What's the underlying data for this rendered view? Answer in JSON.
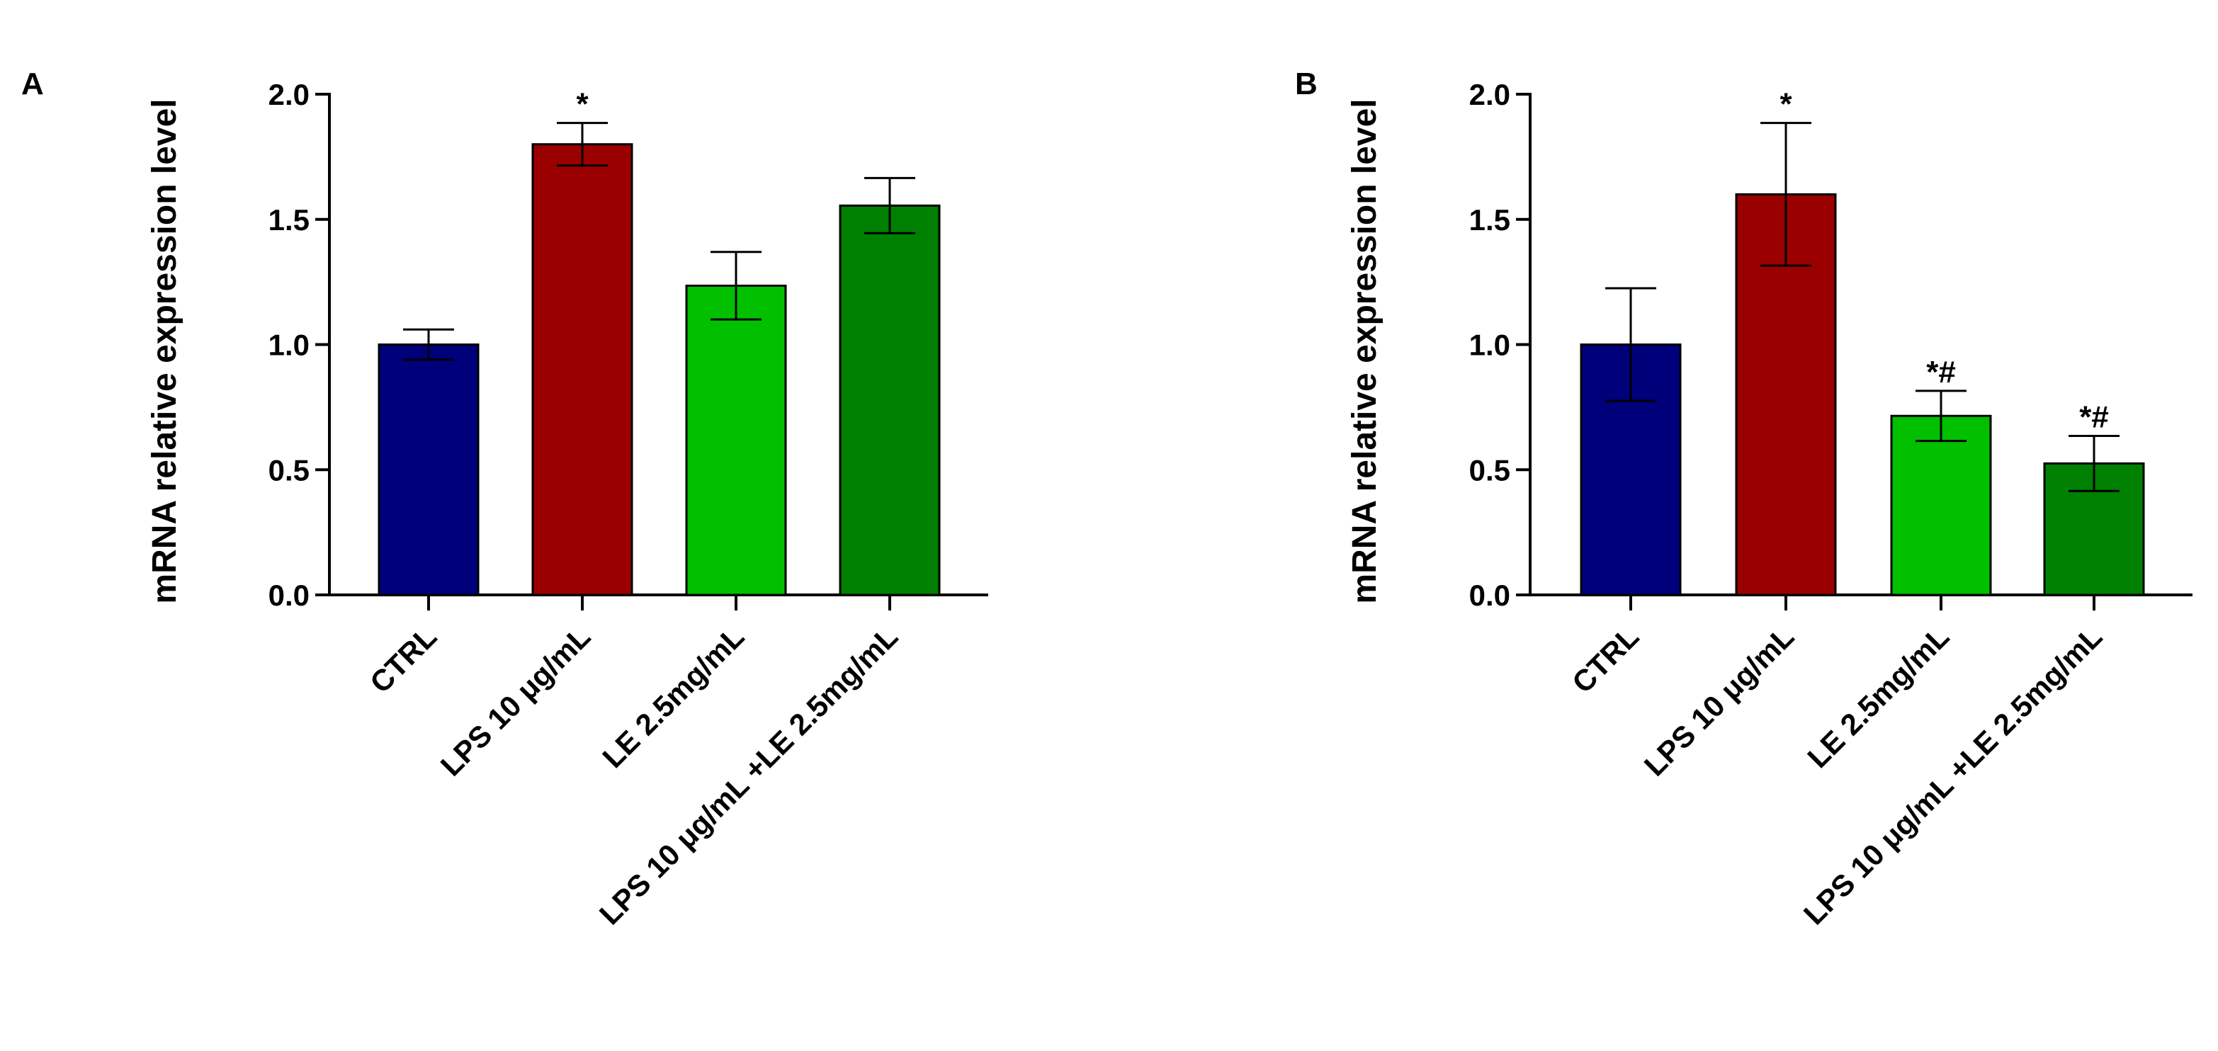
{
  "chart_data": [
    {
      "type": "bar",
      "panel": "A",
      "ylabel": "mRNA relative expression level",
      "ylim": [
        0,
        2.0
      ],
      "yticks": [
        "0.0",
        "0.5",
        "1.0",
        "1.5",
        "2.0"
      ],
      "categories": [
        "CTRL",
        "LPS 10 μg/mL",
        "LE 2.5mg/mL",
        "LPS 10 μg/mL +LE 2.5mg/mL"
      ],
      "values": [
        1.0,
        1.8,
        1.235,
        1.555
      ],
      "errors": [
        0.06,
        0.085,
        0.135,
        0.11
      ],
      "annotations": [
        "",
        "*",
        "",
        ""
      ],
      "colors": [
        "#00007a",
        "#9b0000",
        "#00c000",
        "#008000"
      ]
    },
    {
      "type": "bar",
      "panel": "B",
      "ylabel": "mRNA relative expression level",
      "ylim": [
        0,
        2.0
      ],
      "yticks": [
        "0.0",
        "0.5",
        "1.0",
        "1.5",
        "2.0"
      ],
      "categories": [
        "CTRL",
        "LPS 10 μg/mL",
        "LE 2.5mg/mL",
        "LPS 10 μg/mL +LE 2.5mg/mL"
      ],
      "values": [
        1.0,
        1.6,
        0.715,
        0.525
      ],
      "errors": [
        0.225,
        0.285,
        0.1,
        0.11
      ],
      "annotations": [
        "",
        "*",
        "*#",
        "*#"
      ],
      "colors": [
        "#00007a",
        "#9b0000",
        "#00c000",
        "#008000"
      ]
    }
  ]
}
